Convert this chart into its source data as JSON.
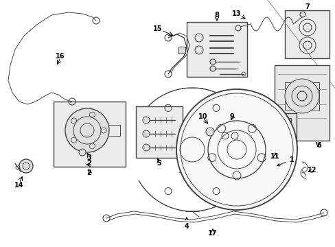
{
  "background_color": "#ffffff",
  "line_color": "#444444",
  "figsize": [
    4.89,
    3.6
  ],
  "dpi": 100
}
